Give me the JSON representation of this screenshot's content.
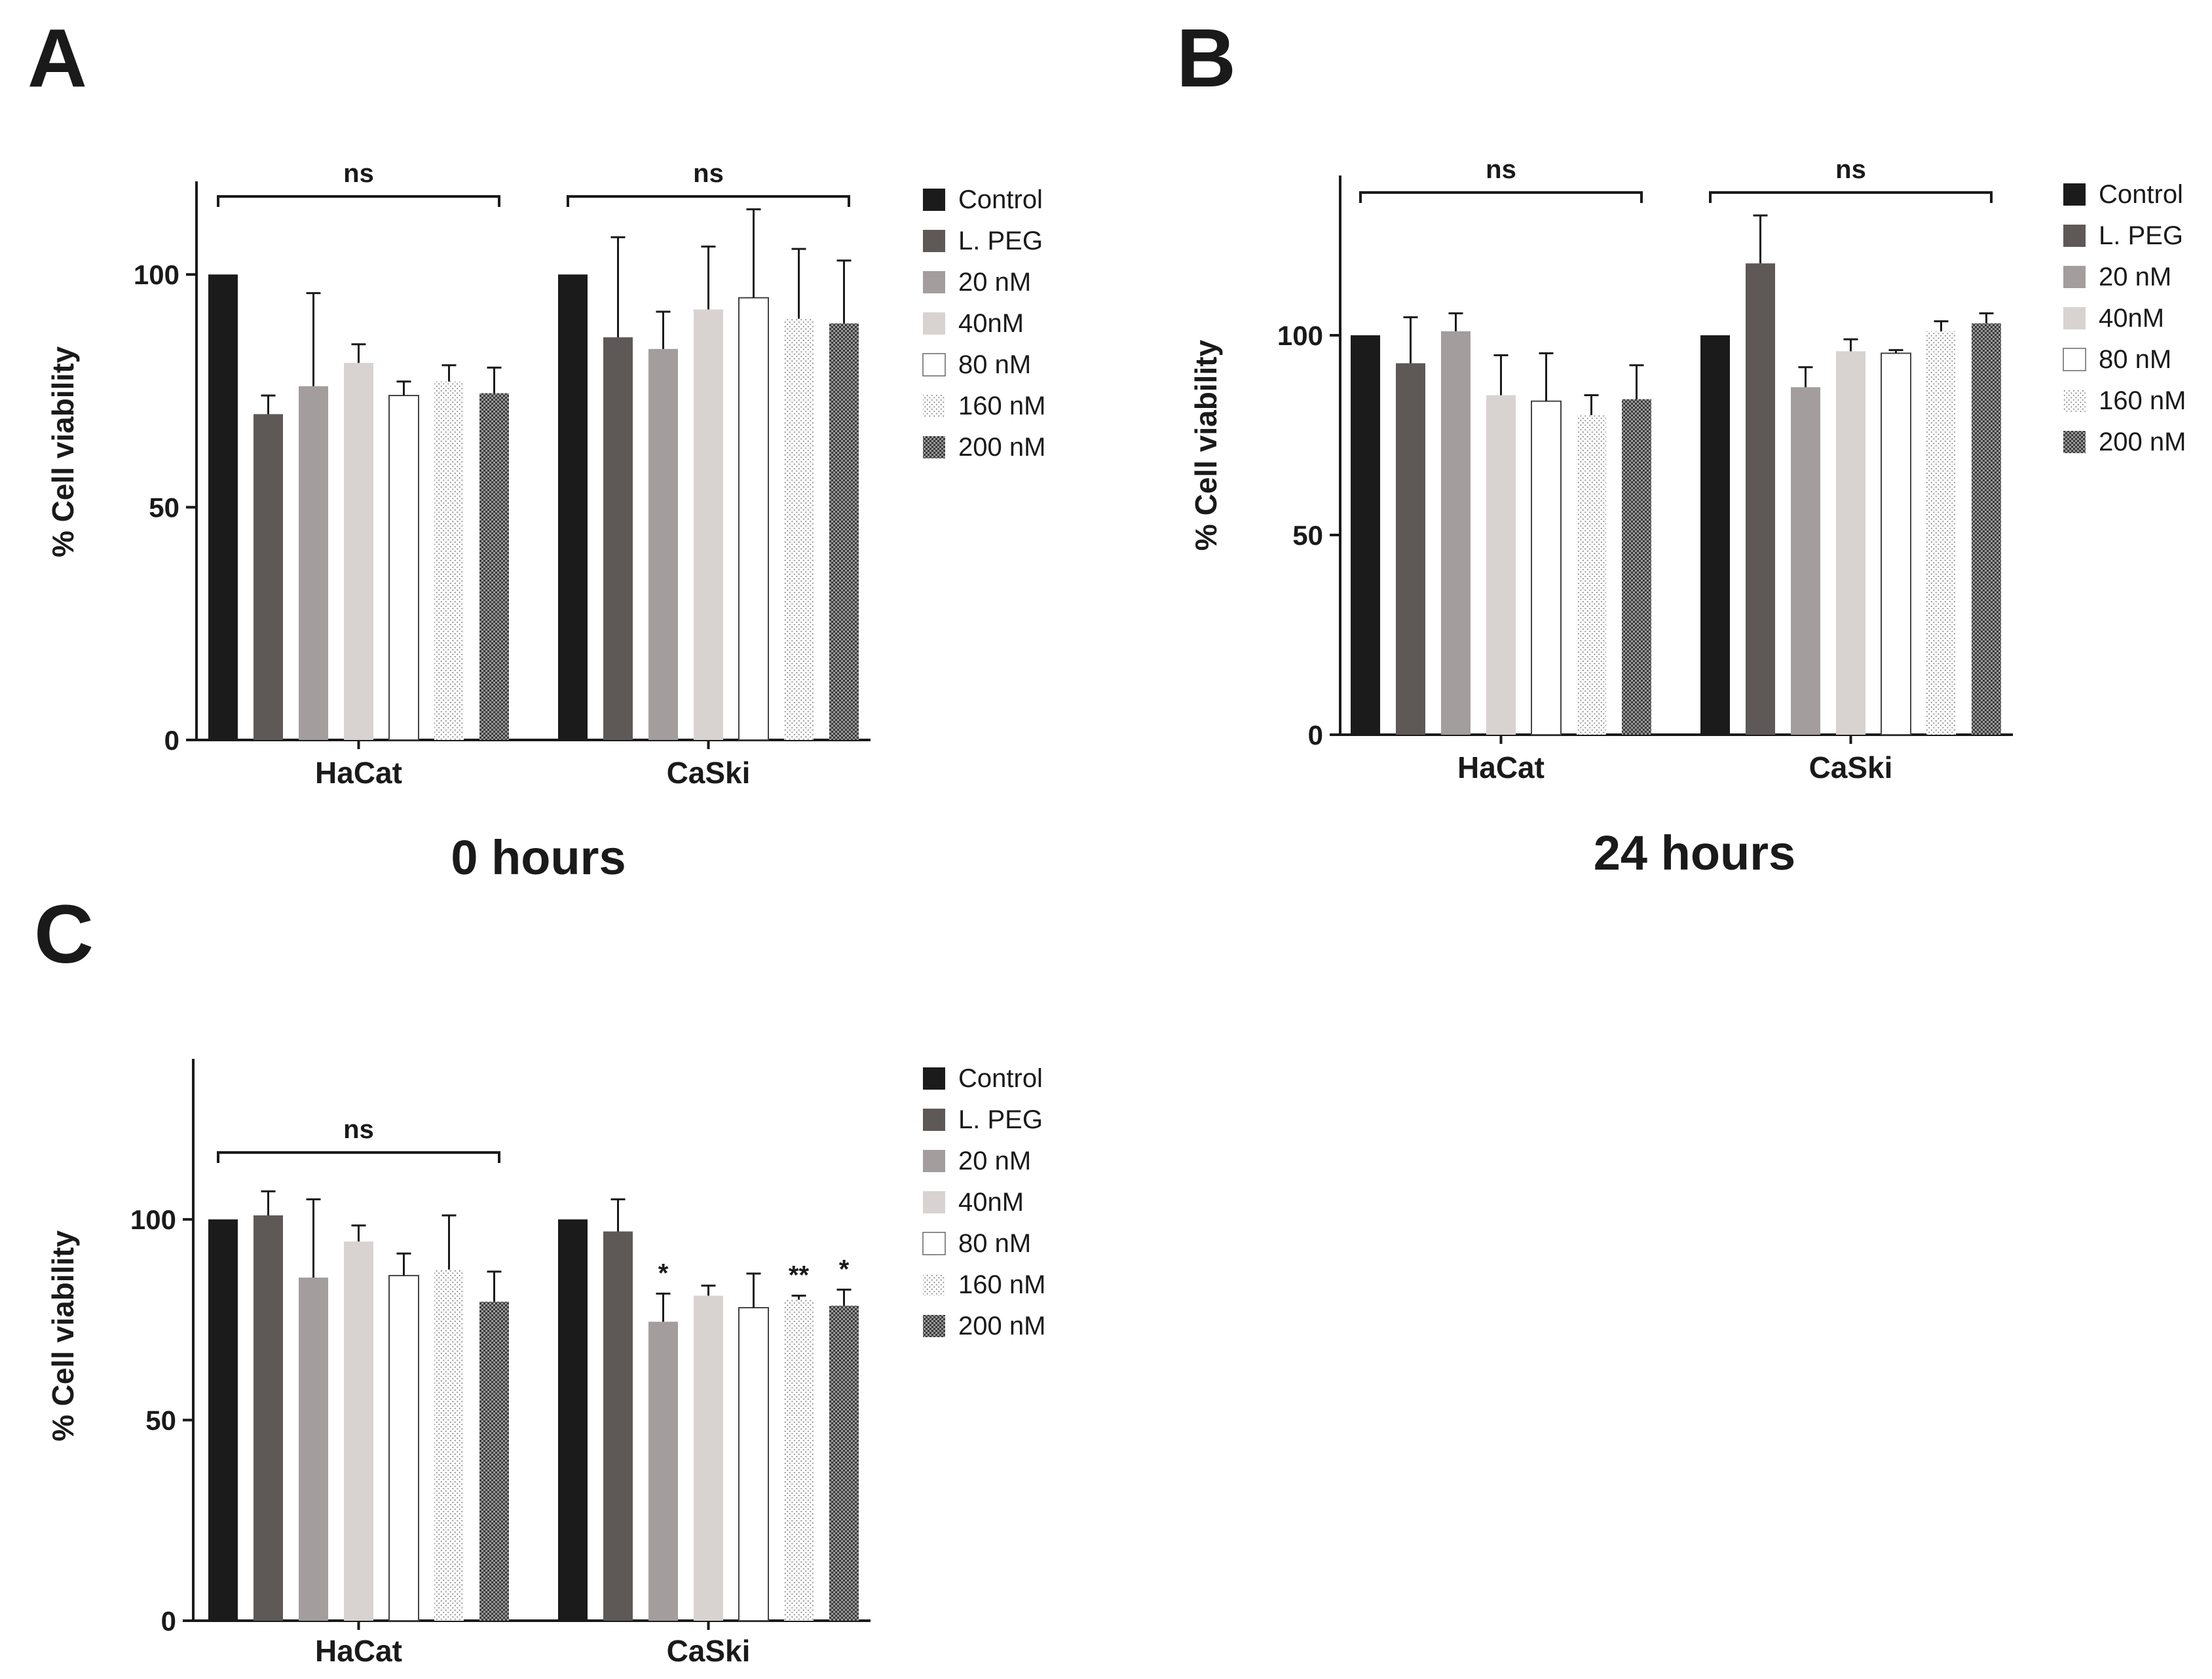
{
  "chart_data": [
    {
      "panel": "A",
      "type": "bar",
      "title": "0  hours",
      "ylabel": "% Cell viability",
      "ylim": [
        0,
        120
      ],
      "yticks": [
        "0",
        "50",
        "100"
      ],
      "categories": [
        "HaCat",
        "CaSki"
      ],
      "series": [
        {
          "name": "Control",
          "values": [
            100,
            100
          ],
          "errors": [
            0,
            0
          ]
        },
        {
          "name": "L. PEG",
          "values": [
            70,
            86.5
          ],
          "errors": [
            4,
            21.5
          ]
        },
        {
          "name": "20 nM",
          "values": [
            76,
            84
          ],
          "errors": [
            20,
            8
          ]
        },
        {
          "name": "40nM",
          "values": [
            81,
            92.5
          ],
          "errors": [
            4,
            13.5
          ]
        },
        {
          "name": "80 nM",
          "values": [
            74,
            95
          ],
          "errors": [
            3,
            19
          ]
        },
        {
          "name": "160 nM",
          "values": [
            77,
            90.5
          ],
          "errors": [
            3.5,
            15
          ]
        },
        {
          "name": "200 nM",
          "values": [
            74.5,
            89.5
          ],
          "errors": [
            5.5,
            13.5
          ]
        }
      ],
      "significance": {
        "group": [
          "ns",
          "ns"
        ],
        "bars": [
          [
            "",
            "",
            "",
            "",
            "",
            "",
            ""
          ],
          [
            "",
            "",
            "",
            "",
            "",
            "",
            ""
          ]
        ]
      }
    },
    {
      "panel": "B",
      "type": "bar",
      "title": "24  hours",
      "ylabel": "% Cell viability",
      "ylim": [
        0,
        140
      ],
      "yticks": [
        "0",
        "50",
        "100"
      ],
      "categories": [
        "HaCat",
        "CaSki"
      ],
      "series": [
        {
          "name": "Control",
          "values": [
            100,
            100
          ],
          "errors": [
            0,
            0
          ]
        },
        {
          "name": "L. PEG",
          "values": [
            93,
            118
          ],
          "errors": [
            11.5,
            12
          ]
        },
        {
          "name": "20 nM",
          "values": [
            101,
            87
          ],
          "errors": [
            4.5,
            5
          ]
        },
        {
          "name": "40nM",
          "values": [
            85,
            96
          ],
          "errors": [
            10,
            3
          ]
        },
        {
          "name": "80 nM",
          "values": [
            83.5,
            95.5
          ],
          "errors": [
            12,
            0.8
          ]
        },
        {
          "name": "160 nM",
          "values": [
            80,
            101
          ],
          "errors": [
            5,
            2.5
          ]
        },
        {
          "name": "200 nM",
          "values": [
            84,
            103
          ],
          "errors": [
            8.5,
            2.5
          ]
        }
      ],
      "significance": {
        "group": [
          "ns",
          "ns"
        ],
        "bars": [
          [
            "",
            "",
            "",
            "",
            "",
            "",
            ""
          ],
          [
            "",
            "",
            "",
            "",
            "",
            "",
            ""
          ]
        ]
      }
    },
    {
      "panel": "C",
      "type": "bar",
      "title": "",
      "ylabel": "% Cell viability",
      "ylim": [
        0,
        140
      ],
      "yticks": [
        "0",
        "50",
        "100"
      ],
      "categories": [
        "HaCat",
        "CaSki"
      ],
      "series": [
        {
          "name": "Control",
          "values": [
            100,
            100
          ],
          "errors": [
            0,
            0
          ]
        },
        {
          "name": "L. PEG",
          "values": [
            101,
            97
          ],
          "errors": [
            6,
            8
          ]
        },
        {
          "name": "20 nM",
          "values": [
            85.5,
            74.5
          ],
          "errors": [
            19.5,
            7
          ]
        },
        {
          "name": "40nM",
          "values": [
            94.5,
            81
          ],
          "errors": [
            4,
            2.5
          ]
        },
        {
          "name": "80 nM",
          "values": [
            86,
            78
          ],
          "errors": [
            5.5,
            8.5
          ]
        },
        {
          "name": "160 nM",
          "values": [
            87.5,
            80
          ],
          "errors": [
            13.5,
            1
          ]
        },
        {
          "name": "200 nM",
          "values": [
            79.5,
            78.5
          ],
          "errors": [
            7.5,
            4
          ]
        }
      ],
      "significance": {
        "group": [
          "ns",
          ""
        ],
        "bars": [
          [
            "",
            "",
            "",
            "",
            "",
            "",
            ""
          ],
          [
            "",
            "",
            "*",
            "",
            "",
            "**",
            "*"
          ]
        ]
      }
    }
  ],
  "palette": {
    "Control": "#1b1b1b",
    "L. PEG": "#5e5957",
    "20 nM": "#a39d9d",
    "40nM": "#d8d3d0",
    "80 nM": "#ffffff",
    "160 nM": "#f2f2f2",
    "200 nM": "#6a6a6a"
  }
}
